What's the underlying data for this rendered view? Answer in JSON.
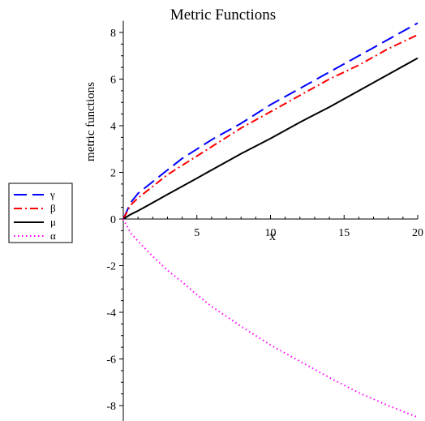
{
  "chart_data": {
    "type": "line",
    "title": "Metric Functions",
    "xlabel": "x",
    "ylabel": "metric functions",
    "xlim": [
      0,
      20
    ],
    "ylim": [
      -8.5,
      8.5
    ],
    "xticks": [
      5,
      10,
      15,
      20
    ],
    "xtick_labels": [
      "5",
      "10",
      "15",
      "20"
    ],
    "yticks": [
      -8,
      -6,
      -4,
      -2,
      0,
      2,
      4,
      6,
      8
    ],
    "ytick_labels": [
      "-8",
      "-6",
      "-4",
      "-2",
      "0",
      "2",
      "4",
      "6",
      "8"
    ],
    "grid": false,
    "legend_position": "left",
    "series": [
      {
        "name": "γ",
        "color": "#0000ff",
        "style": "long-dash",
        "x": [
          0,
          0.5,
          1,
          2,
          3,
          4,
          5,
          6,
          8,
          10,
          12,
          14,
          16,
          18,
          20
        ],
        "y": [
          0,
          0.7,
          1.1,
          1.6,
          2.1,
          2.6,
          3.0,
          3.4,
          4.1,
          4.9,
          5.6,
          6.3,
          7.0,
          7.7,
          8.4
        ]
      },
      {
        "name": "β",
        "color": "#ff0000",
        "style": "dash-dot",
        "x": [
          0,
          0.5,
          1,
          2,
          3,
          4,
          5,
          6,
          8,
          10,
          12,
          14,
          16,
          18,
          20
        ],
        "y": [
          0,
          0.6,
          0.9,
          1.4,
          1.9,
          2.3,
          2.7,
          3.1,
          3.9,
          4.6,
          5.3,
          6.0,
          6.6,
          7.3,
          7.9
        ]
      },
      {
        "name": "μ",
        "color": "#000000",
        "style": "solid",
        "x": [
          0,
          0.5,
          1,
          2,
          3,
          4,
          5,
          6,
          8,
          10,
          12,
          14,
          16,
          18,
          20
        ],
        "y": [
          0,
          0.2,
          0.35,
          0.7,
          1.05,
          1.4,
          1.75,
          2.1,
          2.8,
          3.45,
          4.15,
          4.8,
          5.5,
          6.2,
          6.9
        ]
      },
      {
        "name": "α",
        "color": "#ff00ff",
        "style": "dotted",
        "x": [
          0,
          0.5,
          1,
          2,
          3,
          4,
          5,
          6,
          8,
          10,
          12,
          14,
          16,
          18,
          20
        ],
        "y": [
          0,
          -0.6,
          -0.95,
          -1.6,
          -2.2,
          -2.7,
          -3.25,
          -3.75,
          -4.6,
          -5.4,
          -6.1,
          -6.8,
          -7.45,
          -8.0,
          -8.5
        ]
      }
    ]
  }
}
